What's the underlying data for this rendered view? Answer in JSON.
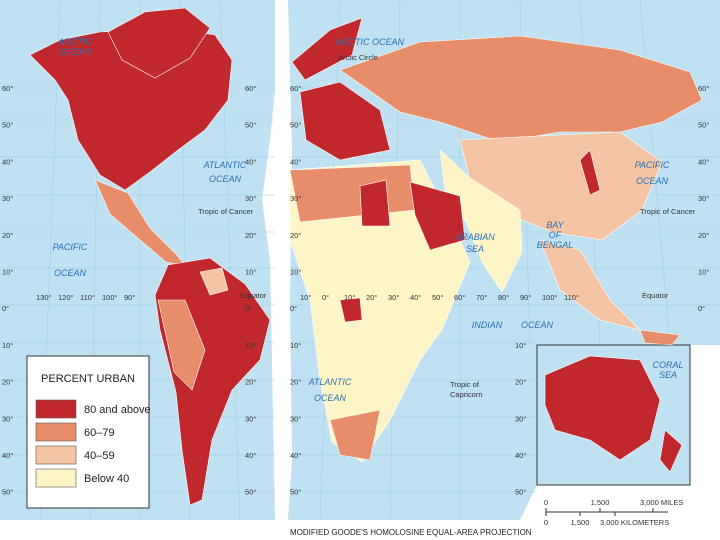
{
  "map": {
    "oceans": {
      "arctic_left": [
        "ARCTIC",
        "OCEAN"
      ],
      "arctic_right": "ARCTIC OCEAN",
      "atlantic_left": [
        "ATLANTIC",
        "OCEAN"
      ],
      "pacific_left": [
        "PACIFIC",
        "OCEAN"
      ],
      "pacific_right": [
        "PACIFIC",
        "OCEAN"
      ],
      "atlantic_bottom": [
        "ATLANTIC",
        "OCEAN"
      ],
      "arabian_sea": [
        "ARABIAN",
        "SEA"
      ],
      "bay_of_bengal": [
        "BAY",
        "OF",
        "BENGAL"
      ],
      "indian_ocean": [
        "INDIAN",
        "OCEAN"
      ],
      "coral_sea": [
        "CORAL",
        "SEA"
      ]
    },
    "lines": {
      "arctic_circle": "Arctic Circle",
      "tropic_of_cancer_left": "Tropic of Cancer",
      "tropic_of_cancer_right": "Tropic of Cancer",
      "equator_left": "Equator",
      "equator_right": "Equator",
      "tropic_of_capricorn": [
        "Tropic of",
        "Capricorn"
      ]
    },
    "latitudes_left": [
      "60°",
      "50°",
      "40°",
      "30°",
      "20°",
      "10°",
      "0°",
      "10°",
      "20°",
      "30°",
      "40°",
      "50°"
    ],
    "latitudes_right": [
      "60°",
      "50°",
      "40°",
      "30°",
      "20°",
      "10°",
      "0°",
      "10°",
      "20°",
      "30°",
      "40°",
      "50°"
    ],
    "longitudes_left": [
      "130°",
      "120°",
      "110°",
      "100°",
      "90°"
    ],
    "longitudes_right": [
      "10°",
      "0°",
      "10°",
      "20°",
      "30°",
      "40°",
      "50°",
      "60°",
      "70°",
      "80°",
      "90°",
      "100°",
      "110°"
    ],
    "legend": {
      "title": "PERCENT URBAN",
      "items": [
        {
          "label": "80 and above",
          "color": "#c0282d"
        },
        {
          "label": "60–79",
          "color": "#e88d6a"
        },
        {
          "label": "40–59",
          "color": "#f4c4a4"
        },
        {
          "label": "Below 40",
          "color": "#fdf5c6"
        }
      ]
    },
    "scale": {
      "miles": [
        "0",
        "1,500",
        "3,000 MILES"
      ],
      "kilometers": [
        "0",
        "1,500",
        "3,000 KILOMETERS"
      ]
    },
    "projection": "MODIFIED GOODE'S HOMOLOSINE EQUAL-AREA PROJECTION"
  }
}
